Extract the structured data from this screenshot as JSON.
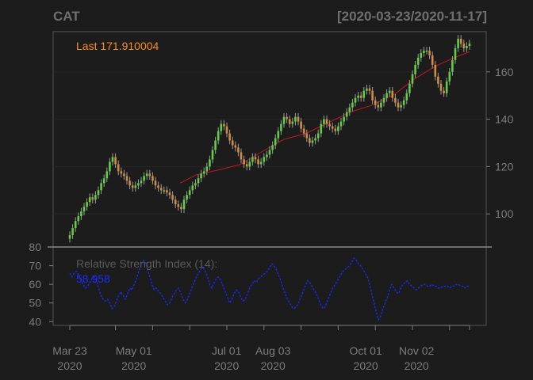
{
  "header": {
    "symbol": "CAT",
    "date_range": "[2020-03-23/2020-11-17]"
  },
  "price_panel": {
    "last_label": "Last 171.910004",
    "last_color": "#ff8c1a",
    "up_color": "#5fd040",
    "down_color": "#d88a40",
    "sma_color": "#c0181e"
  },
  "rsi_panel": {
    "label": "Relative Strength Index (14):",
    "value": "58.958",
    "line_color": "#1a2cff"
  },
  "chart_data": [
    {
      "type": "candlestick",
      "title": "CAT",
      "subtitle": "[2020-03-23/2020-11-17]",
      "ylim": [
        86,
        177
      ],
      "y_ticks": [
        100,
        120,
        140,
        160
      ],
      "x_tick_labels": [
        {
          "label": "Mar 23",
          "year": "2020"
        },
        {
          "label": "May 01",
          "year": "2020"
        },
        {
          "label": "Jul 01",
          "year": "2020"
        },
        {
          "label": "Aug 03",
          "year": "2020"
        },
        {
          "label": "Oct 01",
          "year": "2020"
        },
        {
          "label": "Nov 02",
          "year": "2020"
        }
      ],
      "close": [
        91,
        94,
        97,
        99,
        101,
        103,
        105,
        107,
        106,
        108,
        110,
        113,
        115,
        118,
        122,
        124,
        121,
        118,
        117,
        116,
        114,
        112,
        111,
        112,
        113,
        114,
        116,
        117,
        116,
        114,
        112,
        111,
        110,
        110,
        109,
        108,
        106,
        104,
        103,
        102,
        106,
        108,
        110,
        112,
        113,
        115,
        117,
        118,
        120,
        123,
        127,
        131,
        135,
        138,
        137,
        134,
        131,
        129,
        128,
        126,
        123,
        121,
        120,
        122,
        124,
        123,
        121,
        122,
        124,
        125,
        127,
        129,
        132,
        135,
        138,
        141,
        140,
        138,
        139,
        141,
        139,
        136,
        134,
        132,
        130,
        131,
        132,
        134,
        138,
        140,
        138,
        137,
        136,
        135,
        137,
        139,
        141,
        143,
        145,
        147,
        149,
        150,
        149,
        152,
        153,
        152,
        148,
        146,
        145,
        147,
        149,
        151,
        152,
        149,
        147,
        145,
        146,
        148,
        151,
        155,
        159,
        163,
        166,
        168,
        169,
        169,
        167,
        163,
        158,
        155,
        152,
        151,
        156,
        160,
        165,
        170,
        174,
        172,
        170,
        171,
        172
      ],
      "sma": [
        {
          "i": 50,
          "v": 113.0
        },
        {
          "i": 57,
          "v": 116.4
        },
        {
          "i": 67,
          "v": 118.5
        },
        {
          "i": 77,
          "v": 120.8
        },
        {
          "i": 87,
          "v": 126.3
        },
        {
          "i": 97,
          "v": 131.5
        },
        {
          "i": 107,
          "v": 134.0
        },
        {
          "i": 117,
          "v": 138.5
        },
        {
          "i": 127,
          "v": 143.0
        },
        {
          "i": 137,
          "v": 146.0
        },
        {
          "i": 147,
          "v": 150.5
        },
        {
          "i": 156,
          "v": 157.0
        },
        {
          "i": 163,
          "v": 161.0
        },
        {
          "i": 168,
          "v": 163.5
        },
        {
          "i": 174,
          "v": 166.0
        },
        {
          "i": 181,
          "v": 168.5
        }
      ]
    },
    {
      "type": "line",
      "title": "Relative Strength Index (14):",
      "ylim": [
        38,
        80
      ],
      "y_ticks": [
        40,
        50,
        60,
        70,
        80
      ],
      "values": [
        66,
        64,
        66,
        67,
        65,
        62,
        60,
        58,
        59,
        61,
        63,
        64,
        62,
        58,
        54,
        52,
        51,
        52,
        50,
        47,
        48,
        51,
        54,
        56,
        54,
        52,
        55,
        58,
        57,
        60,
        63,
        67,
        70,
        73,
        72,
        68,
        64,
        60,
        57,
        58,
        56,
        55,
        53,
        51,
        49,
        50,
        53,
        55,
        57,
        58,
        55,
        52,
        50,
        52,
        55,
        58,
        61,
        64,
        66,
        68,
        69,
        67,
        64,
        60,
        58,
        61,
        63,
        64,
        62,
        59,
        56,
        53,
        50,
        52,
        55,
        57,
        56,
        53,
        51,
        52,
        55,
        58,
        60,
        62,
        61,
        63,
        64,
        65,
        66,
        67,
        69,
        71,
        70,
        68,
        65,
        62,
        58,
        55,
        52,
        50,
        48,
        47,
        48,
        50,
        53,
        56,
        59,
        62,
        61,
        59,
        57,
        55,
        52,
        49,
        47,
        48,
        51,
        54,
        57,
        59,
        61,
        63,
        65,
        67,
        68,
        69,
        70,
        72,
        74,
        73,
        71,
        70,
        68,
        66,
        64,
        60,
        55,
        50,
        45,
        41,
        43,
        47,
        50,
        53,
        57,
        60,
        58,
        56,
        55,
        58,
        60,
        61,
        62,
        60,
        59,
        58,
        57,
        58,
        59,
        60,
        60,
        59,
        59,
        60,
        59,
        59,
        58,
        58,
        59,
        59,
        59,
        58,
        59,
        59,
        60,
        60,
        59,
        59,
        58,
        59,
        59
      ]
    }
  ]
}
